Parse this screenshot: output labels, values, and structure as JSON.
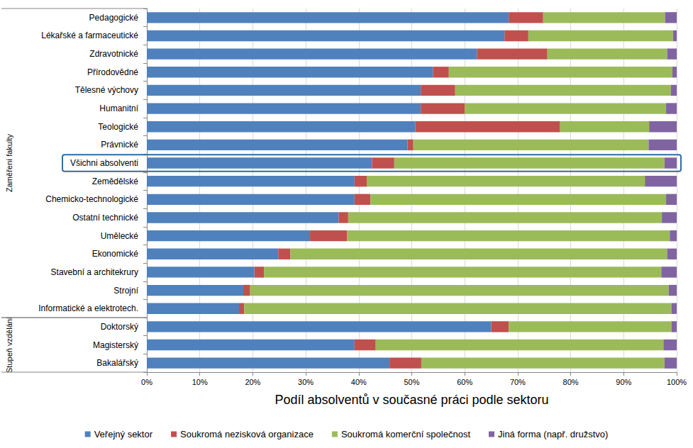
{
  "chart_data": {
    "type": "bar",
    "orientation": "horizontal",
    "stacked": true,
    "grid": true,
    "legend": "bottom",
    "x_label": "Podíl absolventů v současné práci podle sektoru",
    "categories": [
      "Pedagogické",
      "Lékařské a farmaceutické",
      "Zdravotnické",
      "Přírodovědné",
      "Tělesné výchovy",
      "Humanitní",
      "Teologické",
      "Právnické",
      "Všichni absolventi",
      "Zemědělské",
      "Chemicko-technologické",
      "Ostatní technické",
      "Umělecké",
      "Ekonomické",
      "Stavební a architekrury",
      "Strojní",
      "Informatické a elektrotech.",
      "Doktorský",
      "Magisterský",
      "Bakalářský"
    ],
    "groups": [
      {
        "label": "Zaměření fakulty",
        "from": "Pedagogické",
        "to": "Informatické a elektrotech."
      },
      {
        "label": "Stupeň vzdělání",
        "from": "Doktorský",
        "to": "Bakalářský"
      }
    ],
    "annotations": [
      {
        "type": "box",
        "category": "Všichni absolventi"
      }
    ],
    "series": [
      {
        "name": "Veřejný sektor",
        "color": "#4f81bd",
        "values": [
          68.3,
          67.5,
          62.3,
          54.0,
          51.7,
          51.7,
          50.7,
          49.2,
          42.5,
          39.2,
          39.2,
          36.2,
          30.8,
          24.8,
          20.3,
          18.2,
          17.4,
          65.0,
          39.2,
          45.8
        ]
      },
      {
        "name": "Soukromá nezisková organizace",
        "color": "#c0504d",
        "values": [
          6.5,
          4.5,
          13.3,
          3.0,
          6.5,
          8.3,
          27.3,
          1.1,
          4.2,
          2.3,
          3.0,
          1.8,
          7.0,
          2.3,
          1.8,
          1.3,
          1.0,
          3.3,
          4.0,
          6.0
        ]
      },
      {
        "name": "Soukromá komerční společnost",
        "color": "#9bbb59",
        "values": [
          23.0,
          27.3,
          22.6,
          42.2,
          40.7,
          38.0,
          16.8,
          44.4,
          51.0,
          52.5,
          55.8,
          59.2,
          60.9,
          71.1,
          75.0,
          79.0,
          80.6,
          30.7,
          54.3,
          45.9
        ]
      },
      {
        "name": "Jiná forma (např. družstvo)",
        "color": "#8064a2",
        "values": [
          2.2,
          0.7,
          1.8,
          0.8,
          1.1,
          2.0,
          5.2,
          5.3,
          2.3,
          6.0,
          2.0,
          2.8,
          1.3,
          1.8,
          2.9,
          1.5,
          1.0,
          1.0,
          2.5,
          2.3
        ]
      }
    ],
    "xlim": [
      0,
      100
    ],
    "xticks": [
      {
        "value": 0,
        "label": "0%"
      },
      {
        "value": 10,
        "label": "10%"
      },
      {
        "value": 20,
        "label": "20%"
      },
      {
        "value": 30,
        "label": "30%"
      },
      {
        "value": 40,
        "label": "40%"
      },
      {
        "value": 50,
        "label": "50%"
      },
      {
        "value": 60,
        "label": "60%"
      },
      {
        "value": 70,
        "label": "70%"
      },
      {
        "value": 80,
        "label": "80%"
      },
      {
        "value": 90,
        "label": "90%"
      },
      {
        "value": 100,
        "label": "100%"
      }
    ]
  }
}
